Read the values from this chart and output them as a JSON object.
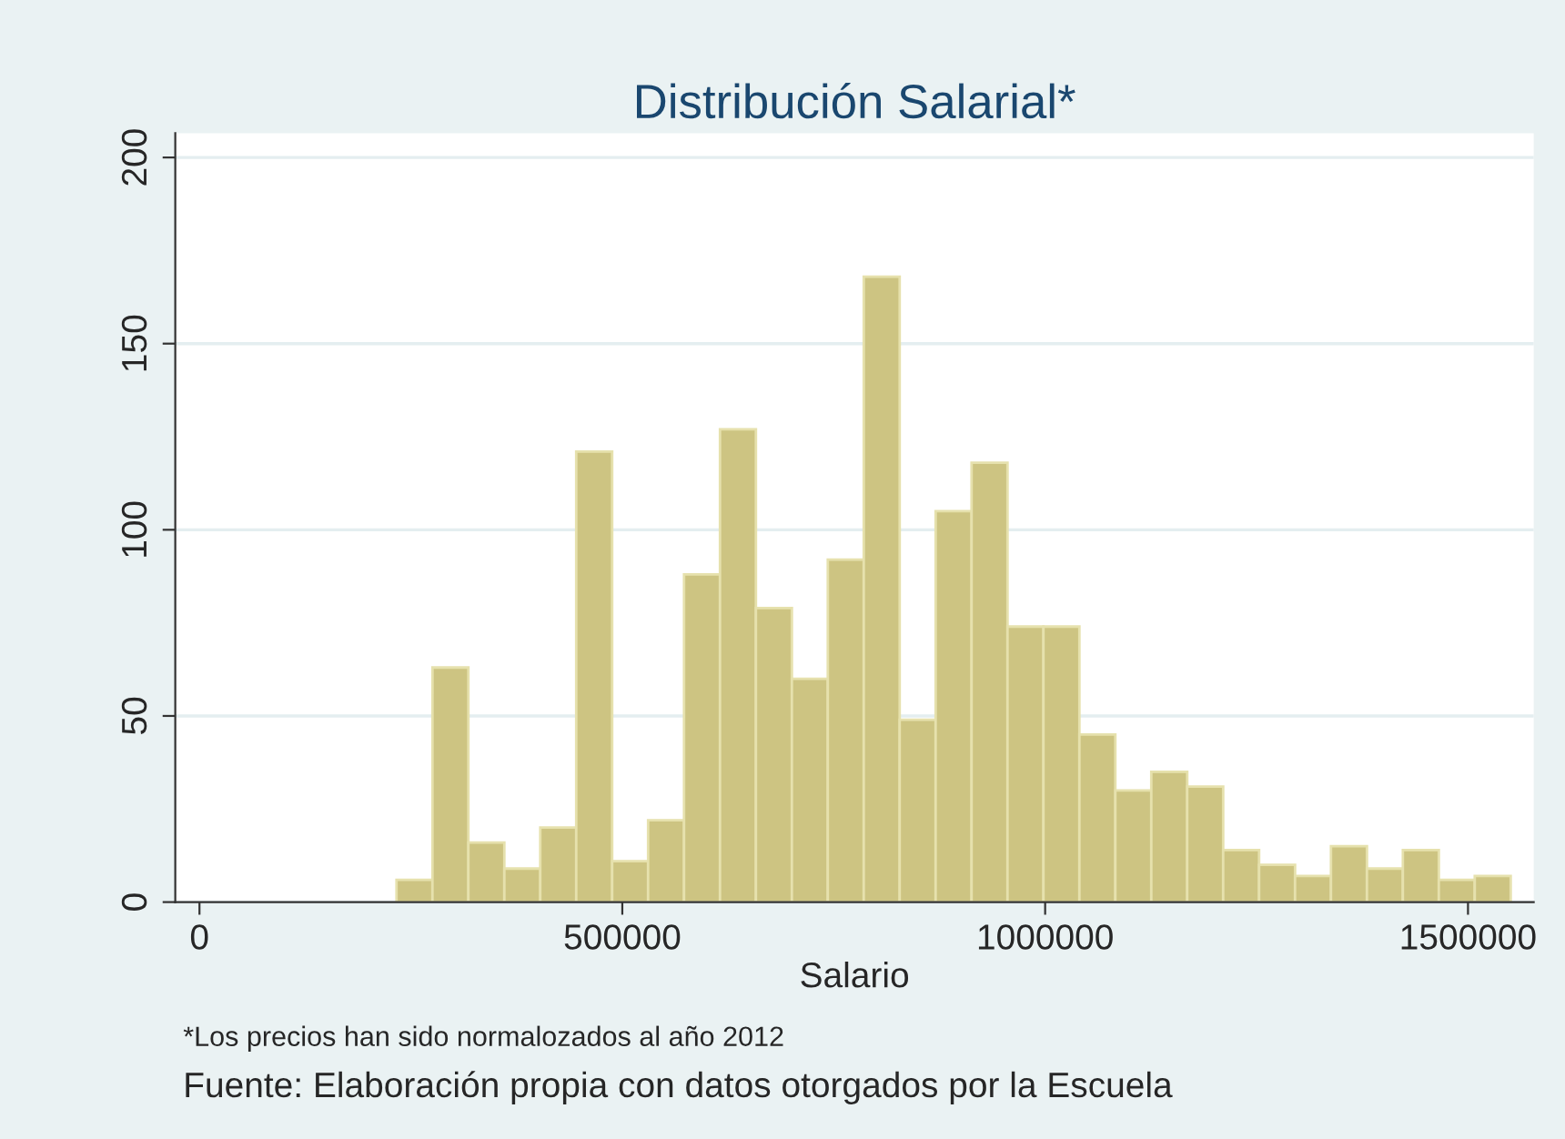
{
  "chart_data": {
    "type": "histogram",
    "title": "Distribución Salarial*",
    "xlabel": "Salario",
    "annotations": [
      "*Los precios han sido normalozados al año 2012",
      "Fuente: Elaboración propia con datos otorgados por la Escuela"
    ],
    "bins": [
      233000,
      275500,
      318000,
      360500,
      403000,
      445500,
      488000,
      530500,
      573000,
      615500,
      658000,
      700500,
      743000,
      785500,
      828000,
      870500,
      913000,
      955500,
      998000,
      1040500,
      1083000,
      1125500,
      1168000,
      1210500,
      1253000,
      1295500,
      1338000,
      1380500,
      1423000,
      1465500,
      1508000,
      1550500
    ],
    "values": [
      6,
      63,
      16,
      9,
      20,
      121,
      11,
      22,
      88,
      127,
      79,
      60,
      92,
      168,
      49,
      105,
      118,
      74,
      74,
      45,
      30,
      35,
      31,
      14,
      10,
      7,
      15,
      9,
      14,
      6,
      7
    ],
    "color": "#cdc482",
    "xlim": [
      -28600,
      1577700
    ],
    "xticks": [
      0,
      500000,
      1000000,
      1500000
    ],
    "ylim": [
      0,
      206.5
    ],
    "yticks": [
      0,
      50,
      100,
      150,
      200
    ],
    "grid": "y"
  }
}
